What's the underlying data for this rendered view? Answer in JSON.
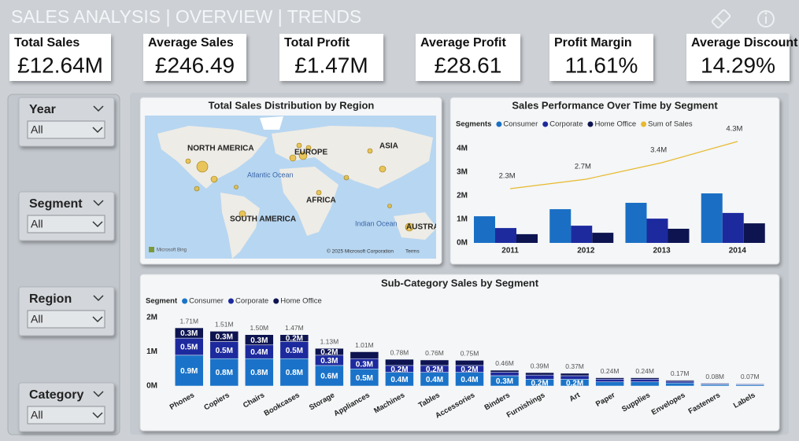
{
  "header": {
    "title": "SALES ANALYSIS | OVERVIEW | TRENDS"
  },
  "kpis": [
    {
      "label": "Total Sales",
      "value": "£12.64M"
    },
    {
      "label": "Average Sales",
      "value": "£246.49"
    },
    {
      "label": "Total Profit",
      "value": "£1.47M"
    },
    {
      "label": "Average Profit",
      "value": "£28.61"
    },
    {
      "label": "Profit Margin",
      "value": "11.61%"
    },
    {
      "label": "Average Discount",
      "value": "14.29%"
    }
  ],
  "filters": [
    {
      "label": "Year",
      "value": "All"
    },
    {
      "label": "Segment",
      "value": "All"
    },
    {
      "label": "Region",
      "value": "All"
    },
    {
      "label": "Category",
      "value": "All"
    }
  ],
  "map": {
    "title": "Total Sales Distribution by Region",
    "labels": [
      "NORTH AMERICA",
      "EUROPE",
      "ASIA",
      "Atlantic Ocean",
      "AFRICA",
      "SOUTH AMERICA",
      "Indian Ocean",
      "AUSTRAL"
    ],
    "attribution": "Microsoft Bing",
    "copyright": "© 2025 Microsoft Corporation",
    "terms": "Terms"
  },
  "chart_data": [
    {
      "type": "bar",
      "title": "Sales Performance Over Time by Segment",
      "legend_title": "Segments",
      "categories": [
        "2011",
        "2012",
        "2013",
        "2014"
      ],
      "series": [
        {
          "name": "Consumer",
          "color": "#1a6fc4",
          "values": [
            1130000,
            1430000,
            1700000,
            2100000
          ]
        },
        {
          "name": "Corporate",
          "color": "#1d2a9e",
          "values": [
            630000,
            730000,
            1030000,
            1270000
          ]
        },
        {
          "name": "Home Office",
          "color": "#0d1450",
          "values": [
            370000,
            430000,
            600000,
            830000
          ]
        },
        {
          "name": "Sum of Sales",
          "type": "line",
          "color": "#e8b92e",
          "values": [
            2300000,
            2700000,
            3400000,
            4300000
          ],
          "value_labels": [
            "2.3M",
            "2.7M",
            "3.4M",
            "4.3M"
          ]
        }
      ],
      "ylim": [
        0,
        4400000
      ],
      "yticks": [
        {
          "value": 0,
          "label": "0M"
        },
        {
          "value": 1000000,
          "label": "1M"
        },
        {
          "value": 2000000,
          "label": "2M"
        },
        {
          "value": 3000000,
          "label": "3M"
        },
        {
          "value": 4000000,
          "label": "4M"
        }
      ]
    },
    {
      "type": "stacked_bar",
      "title": "Sub-Category Sales by Segment",
      "legend_title": "Segment",
      "categories": [
        "Phones",
        "Copiers",
        "Chairs",
        "Bookcases",
        "Storage",
        "Appliances",
        "Machines",
        "Tables",
        "Accessories",
        "Binders",
        "Furnishings",
        "Art",
        "Paper",
        "Supplies",
        "Envelopes",
        "Fasteners",
        "Labels"
      ],
      "series": [
        {
          "name": "Consumer",
          "color": "#1a73c8",
          "values": [
            900000,
            800000,
            800000,
            800000,
            600000,
            500000,
            400000,
            400000,
            400000,
            300000,
            200000,
            200000,
            120000,
            120000,
            90000,
            40000,
            35000
          ],
          "value_labels": [
            "0.9M",
            "0.8M",
            "0.8M",
            "0.8M",
            "0.6M",
            "0.5M",
            "0.4M",
            "0.4M",
            "0.4M",
            "0.3M",
            "0.2M",
            "0.2M",
            null,
            null,
            null,
            null,
            null
          ]
        },
        {
          "name": "Corporate",
          "color": "#1d2a9e",
          "values": [
            500000,
            500000,
            400000,
            500000,
            300000,
            300000,
            200000,
            200000,
            200000,
            100000,
            120000,
            100000,
            80000,
            80000,
            50000,
            25000,
            25000
          ],
          "value_labels": [
            "0.5M",
            "0.5M",
            "0.4M",
            "0.5M",
            "0.3M",
            "0.3M",
            "0.2M",
            "0.2M",
            "0.2M",
            null,
            null,
            null,
            null,
            null,
            null,
            null,
            null
          ]
        },
        {
          "name": "Home Office",
          "color": "#0d1450",
          "values": [
            300000,
            300000,
            300000,
            200000,
            200000,
            200000,
            180000,
            160000,
            150000,
            60000,
            70000,
            70000,
            40000,
            40000,
            30000,
            15000,
            10000
          ],
          "value_labels": [
            "0.3M",
            "0.3M",
            "0.3M",
            "0.2M",
            "0.2M",
            null,
            null,
            null,
            null,
            null,
            null,
            null,
            null,
            null,
            null,
            null,
            null
          ]
        }
      ],
      "totals": {
        "values": [
          1710000,
          1510000,
          1500000,
          1470000,
          1130000,
          1010000,
          780000,
          760000,
          750000,
          460000,
          390000,
          370000,
          240000,
          240000,
          170000,
          80000,
          70000
        ],
        "value_labels": [
          "1.71M",
          "1.51M",
          "1.50M",
          "1.47M",
          "1.13M",
          "1.01M",
          "0.78M",
          "0.76M",
          "0.75M",
          "0.46M",
          "0.39M",
          "0.37M",
          "0.24M",
          "0.24M",
          "0.17M",
          "0.08M",
          "0.07M"
        ]
      },
      "ylim": [
        0,
        2000000
      ],
      "yticks": [
        {
          "value": 0,
          "label": "0M"
        },
        {
          "value": 1000000,
          "label": "1M"
        },
        {
          "value": 2000000,
          "label": "2M"
        }
      ]
    }
  ]
}
